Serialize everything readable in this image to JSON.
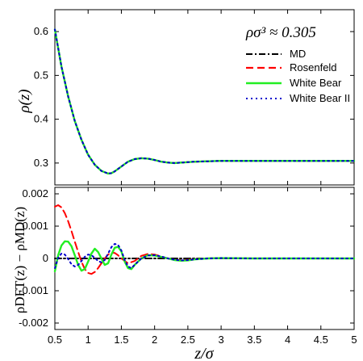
{
  "chart_data": [
    {
      "type": "line",
      "panel": "top",
      "annotation": "ρσ³ ≈ 0.305",
      "ylabel": "ρ(z)",
      "xlim": [
        0.5,
        5
      ],
      "ylim": [
        0.25,
        0.65
      ],
      "yticks": [
        0.3,
        0.4,
        0.5,
        0.6
      ],
      "ytick_labels": [
        "0.3",
        "0.4",
        "0.5",
        "0.6"
      ],
      "legend_position": "top-right",
      "series": [
        {
          "name": "MD",
          "color": "#000000",
          "style": "dash-dot",
          "x": [
            0.5,
            0.6,
            0.7,
            0.8,
            0.9,
            1.0,
            1.1,
            1.2,
            1.3,
            1.35,
            1.4,
            1.5,
            1.6,
            1.7,
            1.8,
            1.9,
            2.0,
            2.1,
            2.2,
            2.3,
            2.4,
            2.5,
            2.6,
            2.8,
            3.0,
            3.5,
            4.0,
            4.5,
            5.0
          ],
          "y": [
            0.605,
            0.52,
            0.452,
            0.396,
            0.353,
            0.319,
            0.296,
            0.282,
            0.276,
            0.277,
            0.281,
            0.292,
            0.303,
            0.309,
            0.311,
            0.31,
            0.307,
            0.303,
            0.301,
            0.3,
            0.301,
            0.302,
            0.303,
            0.304,
            0.305,
            0.305,
            0.305,
            0.305,
            0.305
          ]
        },
        {
          "name": "Rosenfeld",
          "color": "#ff0000",
          "style": "dashed",
          "x": [
            0.5,
            0.6,
            0.7,
            0.8,
            0.9,
            1.0,
            1.1,
            1.2,
            1.3,
            1.35,
            1.4,
            1.5,
            1.6,
            1.7,
            1.8,
            1.9,
            2.0,
            2.1,
            2.2,
            2.3,
            2.4,
            2.5,
            2.6,
            2.8,
            3.0,
            3.5,
            4.0,
            4.5,
            5.0
          ],
          "y": [
            0.605,
            0.52,
            0.452,
            0.396,
            0.353,
            0.319,
            0.296,
            0.282,
            0.276,
            0.277,
            0.281,
            0.292,
            0.303,
            0.309,
            0.311,
            0.31,
            0.307,
            0.303,
            0.301,
            0.3,
            0.301,
            0.302,
            0.303,
            0.304,
            0.305,
            0.305,
            0.305,
            0.305,
            0.305
          ]
        },
        {
          "name": "White Bear",
          "color": "#22ee22",
          "style": "solid",
          "x": [
            0.5,
            0.6,
            0.7,
            0.8,
            0.9,
            1.0,
            1.1,
            1.2,
            1.3,
            1.35,
            1.4,
            1.5,
            1.6,
            1.7,
            1.8,
            1.9,
            2.0,
            2.1,
            2.2,
            2.3,
            2.4,
            2.5,
            2.6,
            2.8,
            3.0,
            3.5,
            4.0,
            4.5,
            5.0
          ],
          "y": [
            0.605,
            0.52,
            0.452,
            0.396,
            0.353,
            0.319,
            0.296,
            0.282,
            0.276,
            0.277,
            0.281,
            0.292,
            0.303,
            0.309,
            0.311,
            0.31,
            0.307,
            0.303,
            0.301,
            0.3,
            0.301,
            0.302,
            0.303,
            0.304,
            0.305,
            0.305,
            0.305,
            0.305,
            0.305
          ]
        },
        {
          "name": "White Bear II",
          "color": "#0000cc",
          "style": "dotted",
          "x": [
            0.5,
            0.6,
            0.7,
            0.8,
            0.9,
            1.0,
            1.1,
            1.2,
            1.3,
            1.35,
            1.4,
            1.5,
            1.6,
            1.7,
            1.8,
            1.9,
            2.0,
            2.1,
            2.2,
            2.3,
            2.4,
            2.5,
            2.6,
            2.8,
            3.0,
            3.5,
            4.0,
            4.5,
            5.0
          ],
          "y": [
            0.605,
            0.52,
            0.452,
            0.396,
            0.353,
            0.319,
            0.296,
            0.282,
            0.276,
            0.277,
            0.281,
            0.292,
            0.303,
            0.309,
            0.311,
            0.31,
            0.307,
            0.303,
            0.301,
            0.3,
            0.301,
            0.302,
            0.303,
            0.304,
            0.305,
            0.305,
            0.305,
            0.305,
            0.305
          ]
        }
      ]
    },
    {
      "type": "line",
      "panel": "bottom",
      "ylabel": "ρDFT(z) − ρMD(z)",
      "xlabel": "z/σ",
      "xlim": [
        0.5,
        5
      ],
      "ylim": [
        -0.0022,
        0.0022
      ],
      "xticks": [
        0.5,
        1,
        1.5,
        2,
        2.5,
        3,
        3.5,
        4,
        4.5,
        5
      ],
      "xtick_labels": [
        "0.5",
        "1",
        "1.5",
        "2",
        "2.5",
        "3",
        "3.5",
        "4",
        "4.5",
        "5"
      ],
      "yticks": [
        -0.002,
        -0.001,
        0,
        0.001,
        0.002
      ],
      "ytick_labels": [
        "-0.002",
        "-0.001",
        "0",
        "0.001",
        "0.002"
      ],
      "series": [
        {
          "name": "MD",
          "color": "#000000",
          "style": "dash-dot",
          "x": [
            0.5,
            5.0
          ],
          "y": [
            0,
            0
          ]
        },
        {
          "name": "Rosenfeld",
          "color": "#ff0000",
          "style": "dashed",
          "x": [
            0.5,
            0.55,
            0.6,
            0.65,
            0.7,
            0.75,
            0.8,
            0.85,
            0.9,
            0.95,
            1.0,
            1.05,
            1.1,
            1.15,
            1.2,
            1.25,
            1.3,
            1.35,
            1.4,
            1.45,
            1.5,
            1.6,
            1.7,
            1.8,
            1.9,
            2.0,
            2.1,
            2.2,
            2.3,
            2.4,
            2.5,
            2.6,
            2.7,
            2.8,
            3.0,
            3.2,
            3.5,
            4.0,
            4.5,
            5.0
          ],
          "y": [
            0.0016,
            0.00165,
            0.00158,
            0.0014,
            0.00115,
            0.00085,
            0.00052,
            0.0002,
            -0.0001,
            -0.00033,
            -0.00045,
            -0.00048,
            -0.00042,
            -0.0003,
            -0.00015,
            0.0,
            0.00012,
            0.00018,
            0.00017,
            0.0001,
            0.0,
            -0.00015,
            -8e-05,
            8e-05,
            0.00014,
            0.00012,
            6e-05,
            0.0,
            -4e-05,
            -5e-05,
            -4e-05,
            -2e-05,
            -1e-05,
            0.0,
            1e-05,
            0.0,
            0.0,
            0.0,
            0.0,
            0.0
          ]
        },
        {
          "name": "White Bear",
          "color": "#22ee22",
          "style": "solid",
          "x": [
            0.5,
            0.55,
            0.6,
            0.65,
            0.7,
            0.75,
            0.8,
            0.85,
            0.9,
            0.95,
            1.0,
            1.05,
            1.1,
            1.15,
            1.2,
            1.25,
            1.3,
            1.35,
            1.4,
            1.45,
            1.5,
            1.55,
            1.6,
            1.65,
            1.7,
            1.8,
            1.9,
            2.0,
            2.1,
            2.2,
            2.3,
            2.4,
            2.5,
            2.6,
            2.8,
            3.0,
            3.5,
            4.0,
            4.5,
            5.0
          ],
          "y": [
            -0.0004,
            0.0001,
            0.0004,
            0.00053,
            0.00052,
            0.00038,
            0.0001,
            -0.0002,
            -0.00038,
            -0.00033,
            -0.0001,
            0.00015,
            0.0003,
            0.0002,
            0.0,
            -0.0002,
            -0.00015,
            0.00012,
            0.00033,
            0.00036,
            0.00022,
            -0.0001,
            -0.0003,
            -0.00033,
            -0.0002,
            0.0,
            0.0001,
            9e-05,
            5e-05,
            0.0,
            -5e-05,
            -7e-05,
            -6e-05,
            -3e-05,
            0.0,
            1e-05,
            0.0,
            0.0,
            0.0,
            0.0
          ]
        },
        {
          "name": "White Bear II",
          "color": "#0000cc",
          "style": "dotted",
          "x": [
            0.5,
            0.55,
            0.6,
            0.65,
            0.7,
            0.75,
            0.8,
            0.85,
            0.9,
            0.95,
            1.0,
            1.05,
            1.1,
            1.15,
            1.2,
            1.25,
            1.3,
            1.35,
            1.4,
            1.45,
            1.5,
            1.55,
            1.6,
            1.65,
            1.7,
            1.8,
            1.9,
            2.0,
            2.1,
            2.2,
            2.3,
            2.4,
            2.5,
            2.6,
            2.8,
            3.0,
            3.5,
            4.0,
            4.5,
            5.0
          ],
          "y": [
            -0.0003,
            2e-05,
            0.00015,
            0.00012,
            -2e-05,
            -0.00018,
            -0.00025,
            -0.0002,
            -8e-05,
            5e-05,
            0.00012,
            0.0001,
            2e-05,
            -8e-05,
            -0.00012,
            -5e-05,
            0.00015,
            0.00035,
            0.00045,
            0.00042,
            0.00025,
            -5e-05,
            -0.00025,
            -0.0003,
            -0.0002,
            0.0,
            9e-05,
            0.0001,
            6e-05,
            0.0,
            -4e-05,
            -6e-05,
            -5e-05,
            -3e-05,
            0.0,
            1e-05,
            0.0,
            0.0,
            0.0,
            0.0
          ]
        }
      ]
    }
  ]
}
